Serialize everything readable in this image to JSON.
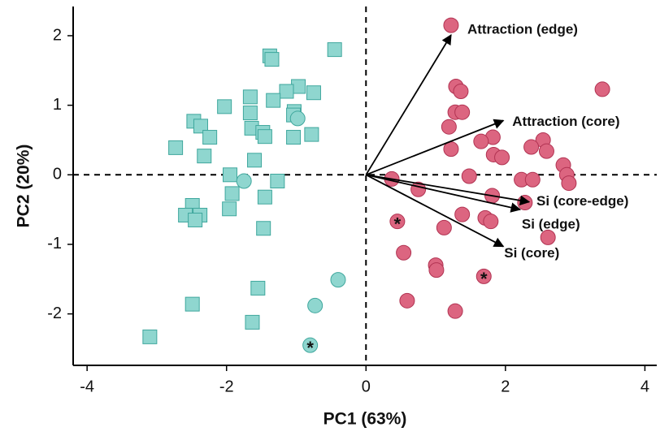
{
  "chart_data": {
    "type": "scatter",
    "x_label": "PC1 (63%)",
    "y_label": "PC2 (20%)",
    "xlim": [
      -4.2,
      4.17
    ],
    "ylim": [
      -2.74,
      2.42
    ],
    "xticks": [
      -4,
      -2,
      0,
      2,
      4
    ],
    "yticks": [
      -2,
      -1,
      0,
      1,
      2
    ],
    "zero_lines": true,
    "series": [
      {
        "marker": "square",
        "color": "#8fd6cf",
        "edge_color": "#3fa79d",
        "x": [
          -0.45,
          -1.38,
          -1.35,
          -0.97,
          -1.14,
          -0.75,
          -1.33,
          -2.03,
          -1.66,
          -2.47,
          -1.03,
          -1.04,
          -1.66,
          -2.37,
          -2.24,
          -1.64,
          -1.48,
          -1.45,
          -1.04,
          -0.78,
          -2.73,
          -2.32,
          -1.6,
          -1.95,
          -1.27,
          -1.92,
          -1.45,
          -1.96,
          -2.49,
          -2.59,
          -2.38,
          -2.45,
          -1.47,
          -1.55,
          -2.49,
          -1.63,
          -3.1
        ],
        "y": [
          1.8,
          1.71,
          1.66,
          1.27,
          1.2,
          1.18,
          1.07,
          0.98,
          1.12,
          0.77,
          0.91,
          0.86,
          0.89,
          0.7,
          0.54,
          0.67,
          0.61,
          0.55,
          0.54,
          0.58,
          0.39,
          0.27,
          0.21,
          0.0,
          -0.09,
          -0.27,
          -0.32,
          -0.49,
          -0.44,
          -0.58,
          -0.58,
          -0.65,
          -0.77,
          -1.63,
          -1.86,
          -2.12,
          -2.33
        ]
      },
      {
        "marker": "circle",
        "color": "#8fd6cf",
        "edge_color": "#3fa79d",
        "x": [
          -0.98,
          -1.75,
          -0.4,
          -0.73,
          -0.8
        ],
        "y": [
          0.81,
          -0.09,
          -1.51,
          -1.88,
          -2.45
        ]
      },
      {
        "marker": "circle",
        "color": "#dc6580",
        "edge_color": "#b13352",
        "x": [
          1.22,
          1.29,
          1.36,
          3.39,
          1.28,
          1.38,
          1.19,
          1.82,
          1.65,
          1.22,
          2.54,
          2.37,
          2.59,
          1.83,
          1.95,
          2.83,
          2.88,
          2.91,
          0.37,
          0.75,
          1.48,
          2.23,
          2.39,
          1.81,
          2.28,
          1.38,
          1.71,
          1.79,
          0.45,
          1.12,
          0.54,
          2.61,
          1.0,
          1.01,
          0.59,
          1.69,
          1.28
        ],
        "y": [
          2.15,
          1.27,
          1.2,
          1.23,
          0.9,
          0.9,
          0.69,
          0.54,
          0.48,
          0.37,
          0.5,
          0.4,
          0.34,
          0.29,
          0.25,
          0.14,
          0.0,
          -0.12,
          -0.06,
          -0.21,
          -0.02,
          -0.07,
          -0.07,
          -0.3,
          -0.4,
          -0.57,
          -0.62,
          -0.67,
          -0.67,
          -0.76,
          -1.12,
          -0.9,
          -1.3,
          -1.37,
          -1.81,
          -1.46,
          -1.96
        ]
      }
    ],
    "annotations": [
      {
        "text": "*",
        "x": -0.8,
        "y": -2.45
      },
      {
        "text": "*",
        "x": 0.45,
        "y": -0.67
      },
      {
        "text": "*",
        "x": 1.69,
        "y": -1.46
      }
    ],
    "loadings": [
      {
        "label": "Attraction (edge)",
        "x": 1.22,
        "y": 2.01
      },
      {
        "label": "Attraction (core)",
        "x": 1.97,
        "y": 0.78
      },
      {
        "label": "Si (core-edge)",
        "x": 2.34,
        "y": -0.39
      },
      {
        "label": "Si (edge)",
        "x": 2.21,
        "y": -0.5
      },
      {
        "label": "Si (core)",
        "x": 1.97,
        "y": -1.03
      }
    ]
  }
}
